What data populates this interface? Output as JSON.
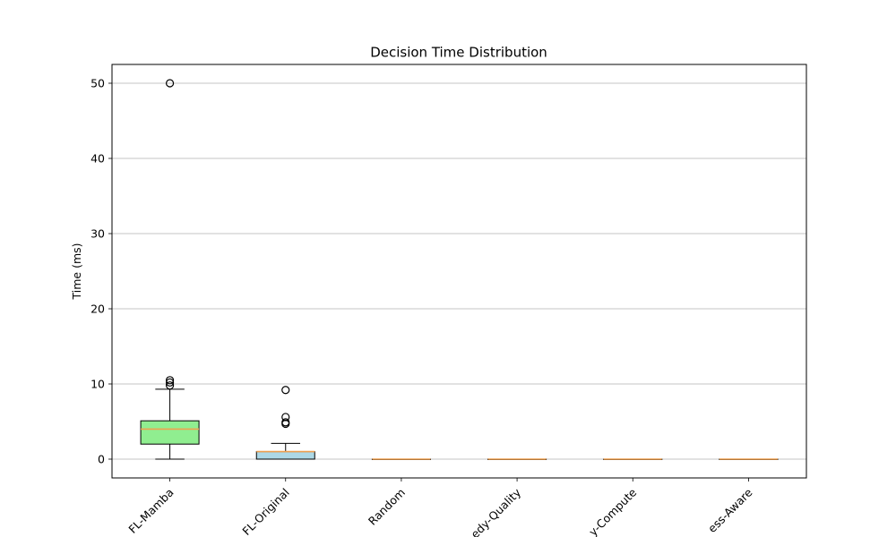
{
  "chart_data": {
    "type": "boxplot",
    "title": "Decision Time Distribution",
    "xlabel": "",
    "ylabel": "Time (ms)",
    "ylim": [
      -2.5,
      52.5
    ],
    "yticks": [
      0,
      10,
      20,
      30,
      40,
      50
    ],
    "ytick_labels": [
      "0",
      "10",
      "20",
      "30",
      "40",
      "50"
    ],
    "grid": "y-axis",
    "categories": [
      "FL-Mamba",
      "FL-Original",
      "Random",
      "Greedy-Quality",
      "Greedy-Compute",
      "Fairness-Aware"
    ],
    "tick_labels_visible": [
      "FL-Mamba",
      "FL-Original",
      "Random",
      "edy-Quality",
      "y-Compute",
      "ess-Aware"
    ],
    "boxes": [
      {
        "name": "FL-Mamba",
        "whisker_low": 0,
        "q1": 2.0,
        "median": 4.0,
        "q3": 5.1,
        "whisker_high": 9.3,
        "fliers": [
          9.8,
          10.2,
          10.5,
          50.0
        ],
        "fill": "#90ee90"
      },
      {
        "name": "FL-Original",
        "whisker_low": 0,
        "q1": 0,
        "median": 1.0,
        "q3": 1.0,
        "whisker_high": 2.1,
        "fliers": [
          4.7,
          4.9,
          5.6,
          9.2
        ],
        "fill": "#add8e6"
      },
      {
        "name": "Random",
        "whisker_low": 0,
        "q1": 0,
        "median": 0,
        "q3": 0,
        "whisker_high": 0,
        "fliers": [],
        "fill": "#cccccc"
      },
      {
        "name": "Greedy-Quality",
        "whisker_low": 0,
        "q1": 0,
        "median": 0,
        "q3": 0,
        "whisker_high": 0,
        "fliers": [],
        "fill": "#cccccc"
      },
      {
        "name": "Greedy-Compute",
        "whisker_low": 0,
        "q1": 0,
        "median": 0,
        "q3": 0,
        "whisker_high": 0,
        "fliers": [],
        "fill": "#cccccc"
      },
      {
        "name": "Fairness-Aware",
        "whisker_low": 0,
        "q1": 0,
        "median": 0,
        "q3": 0,
        "whisker_high": 0,
        "fliers": [],
        "fill": "#cccccc"
      }
    ],
    "median_color": "#f0a050",
    "grid_color": "#b0b0b0"
  }
}
